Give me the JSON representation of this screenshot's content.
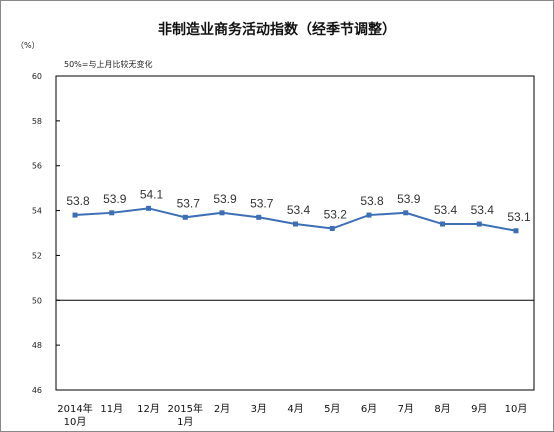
{
  "chart_data": {
    "type": "line",
    "title": "非制造业商务活动指数（经季节调整）",
    "ylabel": "（%）",
    "xlabel": "",
    "annotation": "50%=与上月比较无变化",
    "ylim": [
      46,
      60
    ],
    "yticks": [
      46,
      48,
      50,
      52,
      54,
      56,
      58,
      60
    ],
    "reference_line": 50,
    "categories": [
      [
        "2014年",
        "10月"
      ],
      [
        "11月"
      ],
      [
        "12月"
      ],
      [
        "2015年",
        "1月"
      ],
      [
        "2月"
      ],
      [
        "3月"
      ],
      [
        "4月"
      ],
      [
        "5月"
      ],
      [
        "6月"
      ],
      [
        "7月"
      ],
      [
        "8月"
      ],
      [
        "9月"
      ],
      [
        "10月"
      ]
    ],
    "values": [
      53.8,
      53.9,
      54.1,
      53.7,
      53.9,
      53.7,
      53.4,
      53.2,
      53.8,
      53.9,
      53.4,
      53.4,
      53.1
    ],
    "data_labels": [
      "53.8",
      "53.9",
      "54.1",
      "53.7",
      "53.9",
      "53.7",
      "53.4",
      "53.2",
      "53.8",
      "53.9",
      "53.4",
      "53.4",
      "53.1"
    ],
    "grid": false,
    "colors": {
      "line": "#3d6fb5",
      "marker": "#3d6fb5",
      "axis": "#000000",
      "reference": "#000000"
    }
  }
}
